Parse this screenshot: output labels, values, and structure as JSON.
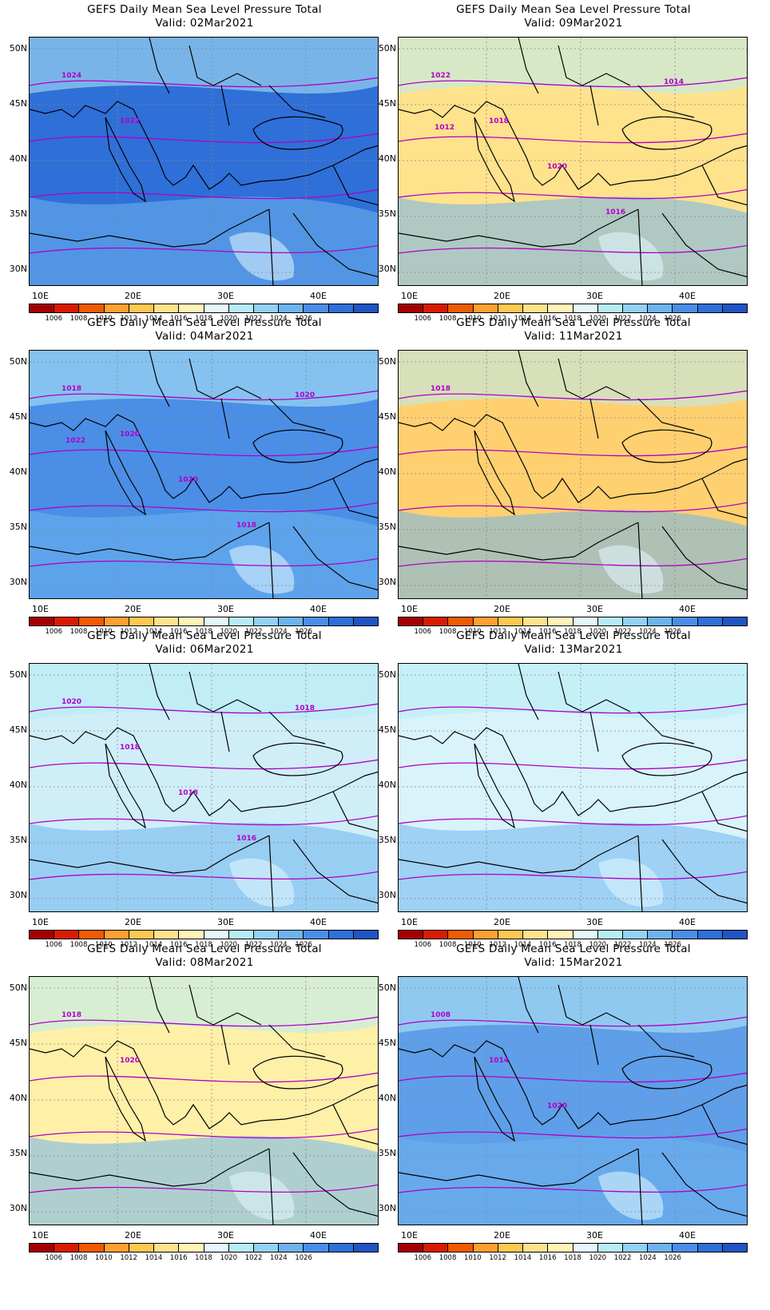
{
  "panels": [
    {
      "title": "GEFS Daily Mean Sea Level Pressure Total",
      "valid": "Valid: 02Mar2021",
      "fill": "#2f6fd8",
      "labels": [
        "1024",
        "1022"
      ]
    },
    {
      "title": "GEFS Daily Mean Sea Level Pressure Total",
      "valid": "Valid: 09Mar2021",
      "fill": "#ffe28c",
      "labels": [
        "1022",
        "1018",
        "1020",
        "1016",
        "1014",
        "1012"
      ]
    },
    {
      "title": "GEFS Daily Mean Sea Level Pressure Total",
      "valid": "Valid: 04Mar2021",
      "fill": "#4a8ee6",
      "labels": [
        "1018",
        "1020",
        "1020",
        "1018",
        "1020",
        "1022"
      ]
    },
    {
      "title": "GEFS Daily Mean Sea Level Pressure Total",
      "valid": "Valid: 11Mar2021",
      "fill": "#ffd070",
      "labels": [
        "1018"
      ]
    },
    {
      "title": "GEFS Daily Mean Sea Level Pressure Total",
      "valid": "Valid: 06Mar2021",
      "fill": "#cfeef8",
      "labels": [
        "1020",
        "1018",
        "1018",
        "1016",
        "1018"
      ]
    },
    {
      "title": "GEFS Daily Mean Sea Level Pressure Total",
      "valid": "Valid: 13Mar2021",
      "fill": "#d9f3fb",
      "labels": []
    },
    {
      "title": "GEFS Daily Mean Sea Level Pressure Total",
      "valid": "Valid: 08Mar2021",
      "fill": "#fff0a8",
      "labels": [
        "1018",
        "1020"
      ]
    },
    {
      "title": "GEFS Daily Mean Sea Level Pressure Total",
      "valid": "Valid: 15Mar2021",
      "fill": "#5f9ee8",
      "labels": [
        "1008",
        "1014",
        "1020"
      ]
    }
  ],
  "lat_ticks": [
    "50N",
    "45N",
    "40N",
    "35N",
    "30N"
  ],
  "lon_ticks": [
    "10E",
    "20E",
    "30E",
    "40E"
  ],
  "colorbar": {
    "colors": [
      "#a50000",
      "#d91c00",
      "#f05a00",
      "#ffa030",
      "#ffc850",
      "#ffe28c",
      "#fff3b8",
      "#e4f7ff",
      "#b7ecf6",
      "#93d1f5",
      "#6db4ee",
      "#4a8ee6",
      "#2f6fd8",
      "#1f55c4"
    ],
    "labels": [
      "1006",
      "1008",
      "1010",
      "1012",
      "1014",
      "1016",
      "1018",
      "1020",
      "1022",
      "1024",
      "1026"
    ]
  },
  "isobar_color": "#b000c8"
}
